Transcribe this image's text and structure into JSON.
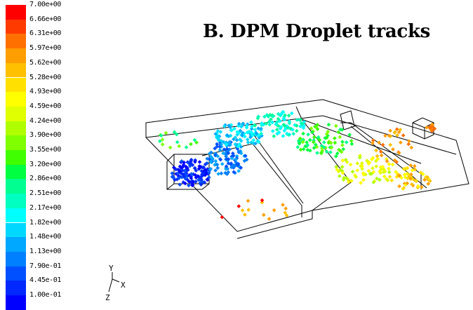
{
  "title": "B. DPM Droplet tracks",
  "legend": {
    "values": [
      "7.00e+00",
      "6.66e+00",
      "6.31e+00",
      "5.97e+00",
      "5.62e+00",
      "5.28e+00",
      "4.93e+00",
      "4.59e+00",
      "4.24e+00",
      "3.90e+00",
      "3.55e+00",
      "3.20e+00",
      "2.86e+00",
      "2.51e+00",
      "2.17e+00",
      "1.82e+00",
      "1.48e+00",
      "1.13e+00",
      "7.90e-01",
      "4.45e-01",
      "1.00e-01"
    ],
    "colors": [
      "#ff0000",
      "#ff3a00",
      "#ff7000",
      "#ff9e00",
      "#ffc000",
      "#ffe000",
      "#ffff00",
      "#e0ff00",
      "#b0ff00",
      "#80ff00",
      "#40ff00",
      "#00ff40",
      "#00ff90",
      "#00ffc0",
      "#00ffff",
      "#00d8ff",
      "#00a8ff",
      "#0080ff",
      "#0050ff",
      "#0028ff",
      "#0000ff"
    ]
  },
  "axes": {
    "y": "Y",
    "x": "X",
    "z": "Z"
  }
}
